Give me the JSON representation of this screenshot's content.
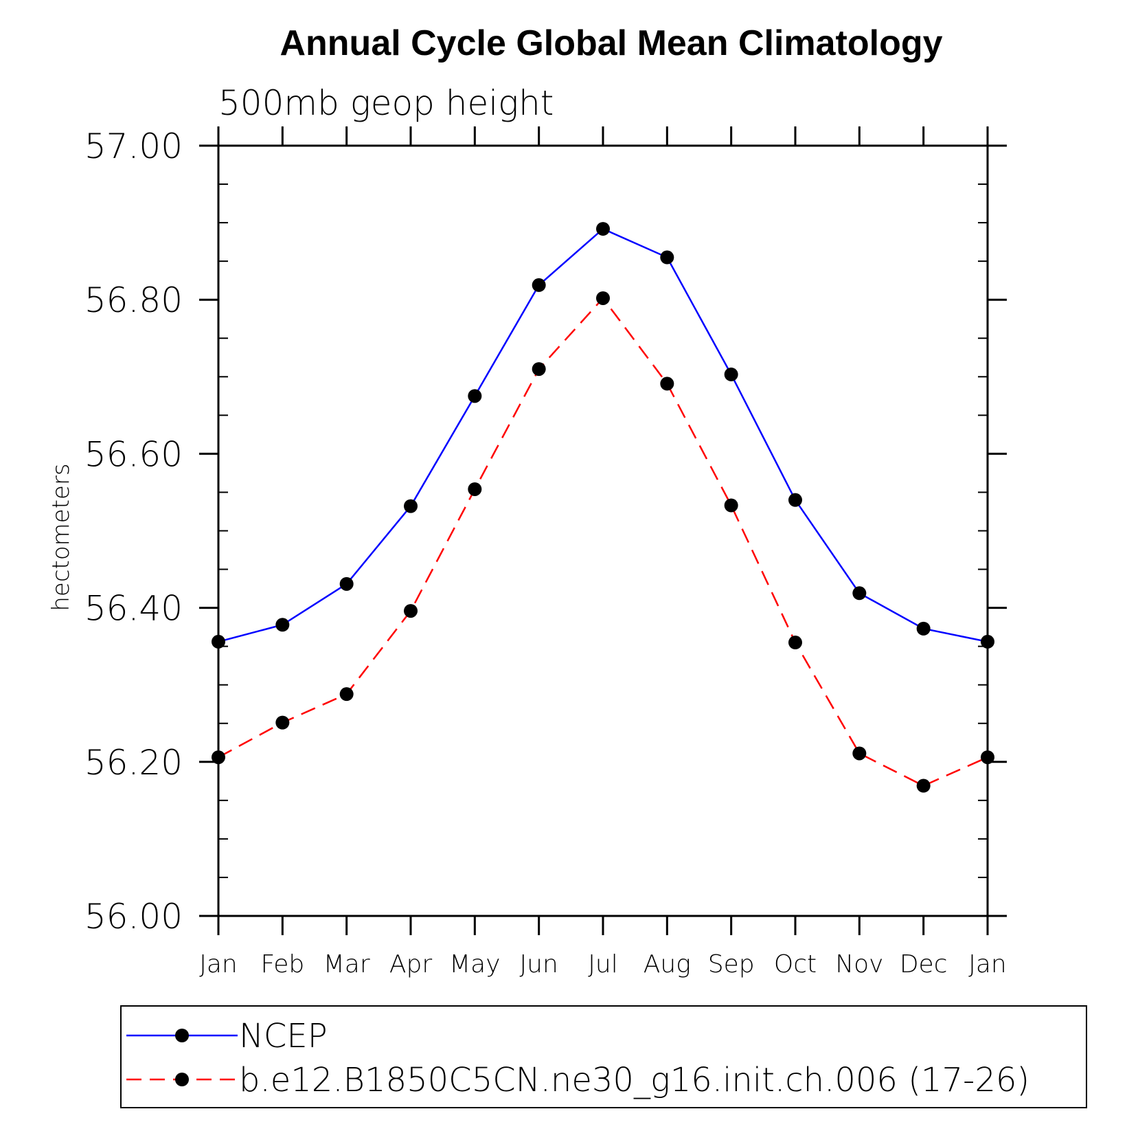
{
  "chart_data": {
    "type": "line",
    "title": "Annual Cycle Global Mean Climatology",
    "subtitle": "500mb geop height",
    "xlabel": "",
    "ylabel": "hectometers",
    "categories": [
      "Jan",
      "Feb",
      "Mar",
      "Apr",
      "May",
      "Jun",
      "Jul",
      "Aug",
      "Sep",
      "Oct",
      "Nov",
      "Dec",
      "Jan"
    ],
    "ylim": [
      56.0,
      57.0
    ],
    "yticks": [
      "56.00",
      "56.20",
      "56.40",
      "56.60",
      "56.80",
      "57.00"
    ],
    "y_minor_step": 0.05,
    "grid": false,
    "legend_placement": "bottom",
    "series": [
      {
        "name": "NCEP",
        "color": "#0000ff",
        "line_style": "solid",
        "marker": "filled-circle",
        "values": [
          56.356,
          56.378,
          56.431,
          56.532,
          56.675,
          56.819,
          56.892,
          56.855,
          56.703,
          56.54,
          56.419,
          56.373,
          56.356
        ]
      },
      {
        "name": "b.e12.B1850C5CN.ne30_g16.init.ch.006 (17-26)",
        "color": "#ff0000",
        "line_style": "dashed",
        "marker": "filled-circle",
        "values": [
          56.206,
          56.251,
          56.288,
          56.396,
          56.554,
          56.71,
          56.802,
          56.691,
          56.533,
          56.355,
          56.211,
          56.169,
          56.206
        ]
      }
    ]
  }
}
